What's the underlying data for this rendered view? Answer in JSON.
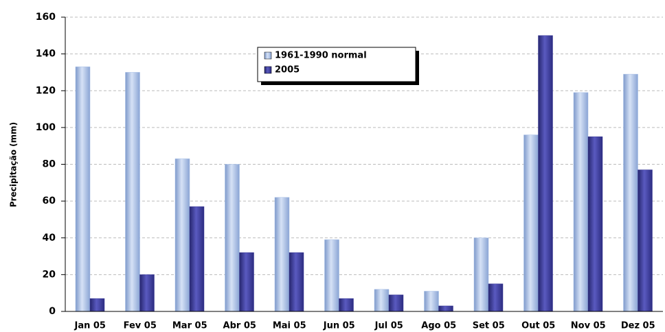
{
  "chart_data": {
    "type": "bar",
    "y_label": "Precipitação (mm)",
    "categories": [
      "Jan 05",
      "Fev 05",
      "Mar 05",
      "Abr 05",
      "Mai 05",
      "Jun 05",
      "Jul 05",
      "Ago 05",
      "Set 05",
      "Out 05",
      "Nov 05",
      "Dez 05"
    ],
    "series": [
      {
        "name": "1961-1990 normal",
        "color": "#a4bde6",
        "values": [
          133,
          130,
          83,
          80,
          62,
          39,
          12,
          11,
          40,
          96,
          119,
          129
        ]
      },
      {
        "name": "2005",
        "color": "#3a3a9a",
        "values": [
          7,
          20,
          57,
          32,
          32,
          7,
          9,
          3,
          15,
          150,
          95,
          77
        ]
      }
    ],
    "ylim": [
      0,
      160
    ],
    "yticks": [
      0,
      20,
      40,
      60,
      80,
      100,
      120,
      140,
      160
    ],
    "grid": true
  }
}
